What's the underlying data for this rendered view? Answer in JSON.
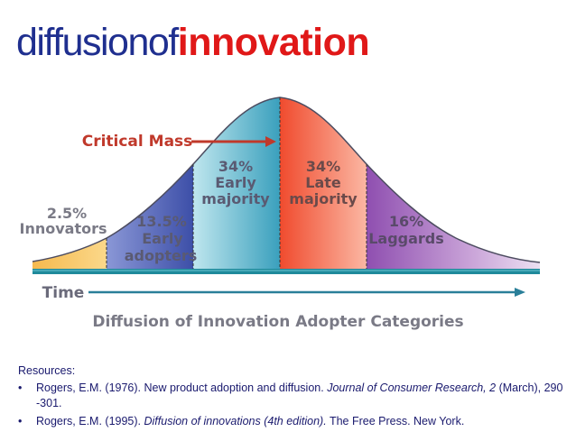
{
  "title": {
    "part1": "diffusionof",
    "part2": "innovation"
  },
  "diagram": {
    "critical_mass": "Critical Mass",
    "time": "Time",
    "caption": "Diffusion of Innovation Adopter Categories",
    "segments": [
      {
        "pct": "2.5%",
        "name": [
          "Innovators"
        ],
        "share": 2.5,
        "color": "#f7c56a"
      },
      {
        "pct": "13.5%",
        "name": [
          "Early",
          "adopters"
        ],
        "share": 13.5,
        "color": "#5566b8"
      },
      {
        "pct": "34%",
        "name": [
          "Early",
          "majority"
        ],
        "share": 34,
        "color": "#56b8cc"
      },
      {
        "pct": "34%",
        "name": [
          "Late",
          "majority"
        ],
        "share": 34,
        "color": "#f26a4f"
      },
      {
        "pct": "16%",
        "name": [
          "Laggards"
        ],
        "share": 16,
        "color": "#a76fbd"
      }
    ]
  },
  "resources": {
    "heading": "Resources:",
    "items": [
      {
        "bullet": "•",
        "pre": "Rogers, E.M. (1976). New product adoption and diffusion. ",
        "ital": "Journal of Consumer Research, 2",
        "post": " (March), 290 -301."
      },
      {
        "bullet": "•",
        "pre": "Rogers, E.M. (1995). ",
        "ital": "Diffusion of innovations (4th edition).",
        "post": " The Free Press. New York."
      }
    ]
  }
}
